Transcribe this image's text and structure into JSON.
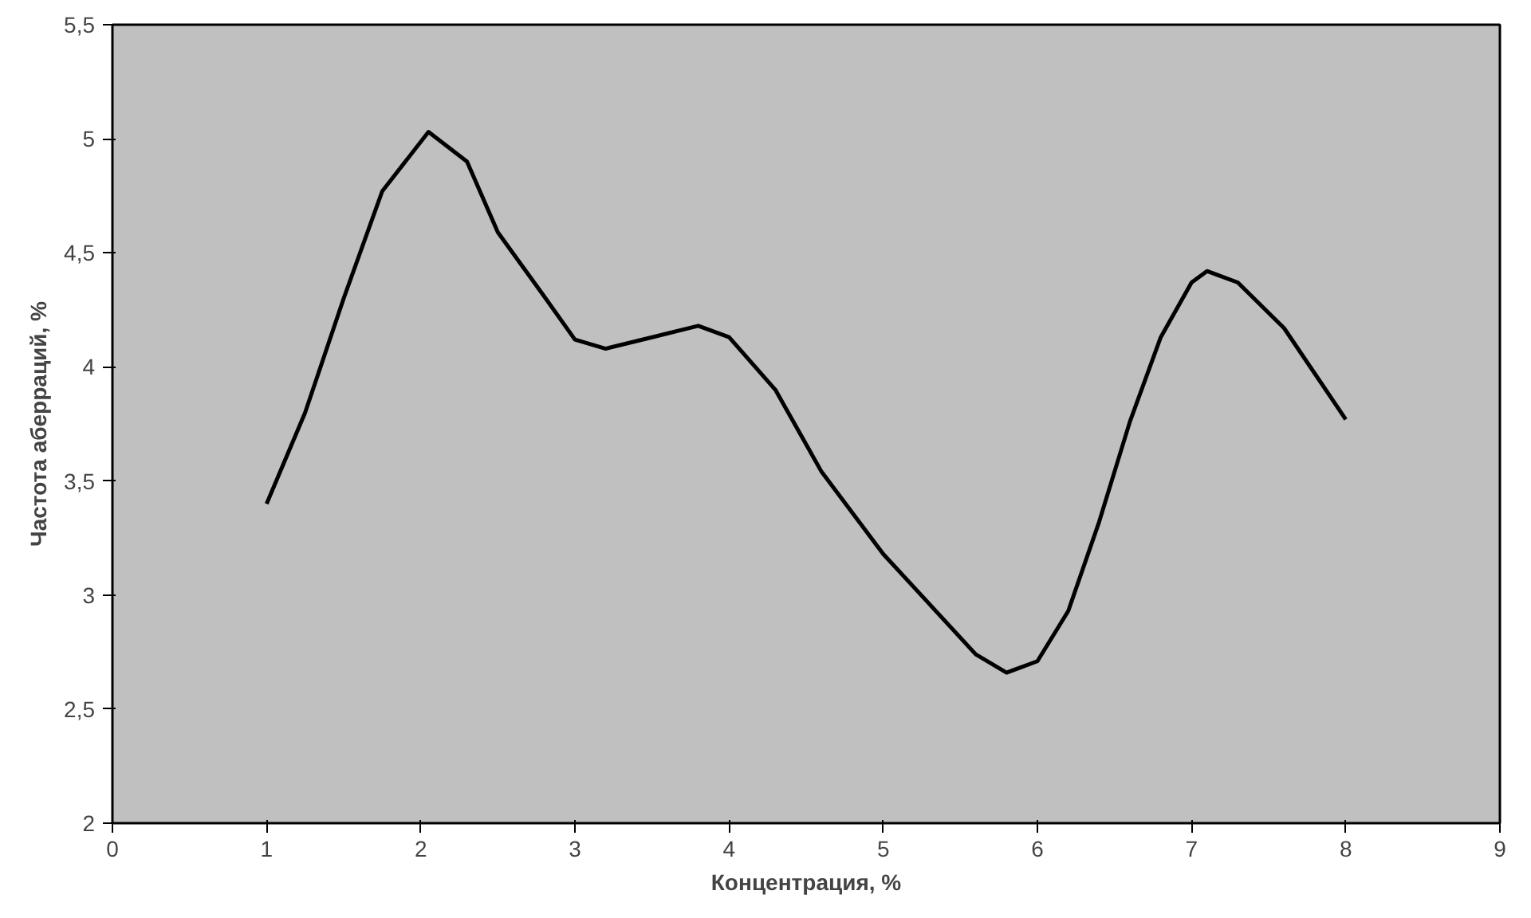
{
  "chart_data": {
    "type": "line",
    "xlabel": "Концентрация, %",
    "ylabel": "Частота аберраций, %",
    "x": [
      1,
      1.25,
      1.5,
      1.75,
      2.05,
      2.3,
      2.5,
      2.8,
      3,
      3.2,
      3.5,
      3.8,
      4,
      4.3,
      4.6,
      5,
      5.3,
      5.6,
      5.8,
      6,
      6.2,
      6.4,
      6.6,
      6.8,
      7,
      7.1,
      7.3,
      7.6,
      8
    ],
    "series": [
      {
        "color": "#000000",
        "values": [
          3.4,
          3.8,
          4.3,
          4.77,
          5.03,
          4.9,
          4.59,
          4.31,
          4.12,
          4.08,
          4.13,
          4.18,
          4.13,
          3.9,
          3.54,
          3.18,
          2.96,
          2.74,
          2.66,
          2.71,
          2.93,
          3.32,
          3.76,
          4.13,
          4.37,
          4.42,
          4.37,
          4.17,
          3.77
        ]
      }
    ],
    "xlim": [
      0,
      9
    ],
    "ylim": [
      2,
      5.5
    ],
    "xticks": [
      0,
      1,
      2,
      3,
      4,
      5,
      6,
      7,
      8,
      9
    ],
    "yticks": [
      2,
      {
        "value": 2.5,
        "label": "2,5"
      },
      3,
      {
        "value": 3.5,
        "label": "3,5"
      },
      4,
      {
        "value": 4.5,
        "label": "4,5"
      },
      5,
      {
        "value": 5.5,
        "label": "5,5"
      }
    ],
    "grid": false,
    "marker": "none",
    "line_style": "solid"
  }
}
